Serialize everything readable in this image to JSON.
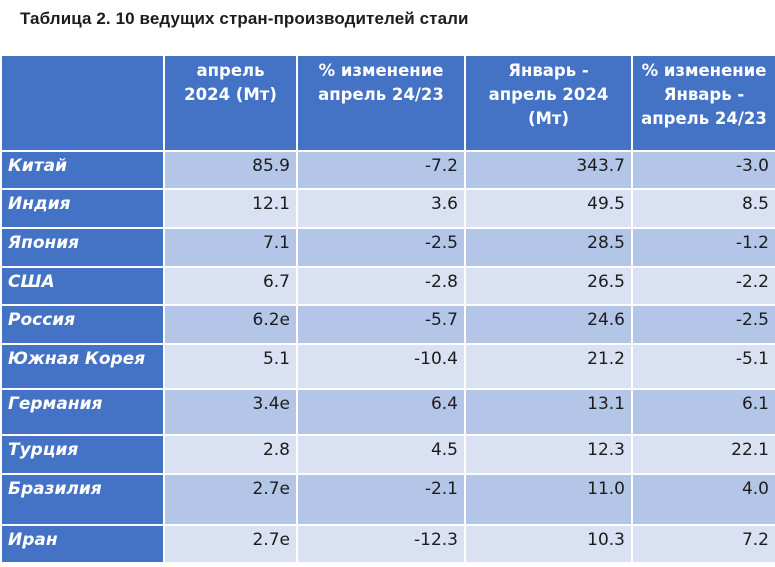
{
  "caption": "Таблица 2. 10 ведущих стран-производителей стали",
  "headers": {
    "country": "",
    "april_2024": "апрель 2024 (Мт)",
    "change_april": "% изменение апрель 24/23",
    "jan_april_2024": "Январь - апрель 2024 (Мт)",
    "change_jan_april": "% изменение Январь - апрель 24/23"
  },
  "rows": [
    {
      "country": "Китай",
      "april_2024": "85.9",
      "change_april": "-7.2",
      "jan_april_2024": "343.7",
      "change_jan_april": "-3.0"
    },
    {
      "country": "Индия",
      "april_2024": "12.1",
      "change_april": "3.6",
      "jan_april_2024": "49.5",
      "change_jan_april": "8.5"
    },
    {
      "country": "Япония",
      "april_2024": "7.1",
      "change_april": "-2.5",
      "jan_april_2024": "28.5",
      "change_jan_april": "-1.2"
    },
    {
      "country": "США",
      "april_2024": "6.7",
      "change_april": "-2.8",
      "jan_april_2024": "26.5",
      "change_jan_april": "-2.2"
    },
    {
      "country": "Россия",
      "april_2024": "6.2e",
      "change_april": "-5.7",
      "jan_april_2024": "24.6",
      "change_jan_april": "-2.5"
    },
    {
      "country": "Южная Корея",
      "april_2024": "5.1",
      "change_april": "-10.4",
      "jan_april_2024": "21.2",
      "change_jan_april": "-5.1"
    },
    {
      "country": "Германия",
      "april_2024": "3.4e",
      "change_april": "6.4",
      "jan_april_2024": "13.1",
      "change_jan_april": "6.1"
    },
    {
      "country": "Турция",
      "april_2024": "2.8",
      "change_april": "4.5",
      "jan_april_2024": "12.3",
      "change_jan_april": "22.1"
    },
    {
      "country": "Бразилия",
      "april_2024": "2.7e",
      "change_april": "-2.1",
      "jan_april_2024": "11.0",
      "change_jan_april": "4.0"
    },
    {
      "country": "Иран",
      "april_2024": "2.7e",
      "change_april": "-12.3",
      "jan_april_2024": "10.3",
      "change_jan_april": "7.2"
    }
  ],
  "colors": {
    "header_bg": "#4472c4",
    "row_odd": "#b4c6e7",
    "row_even": "#d9e1f2"
  }
}
